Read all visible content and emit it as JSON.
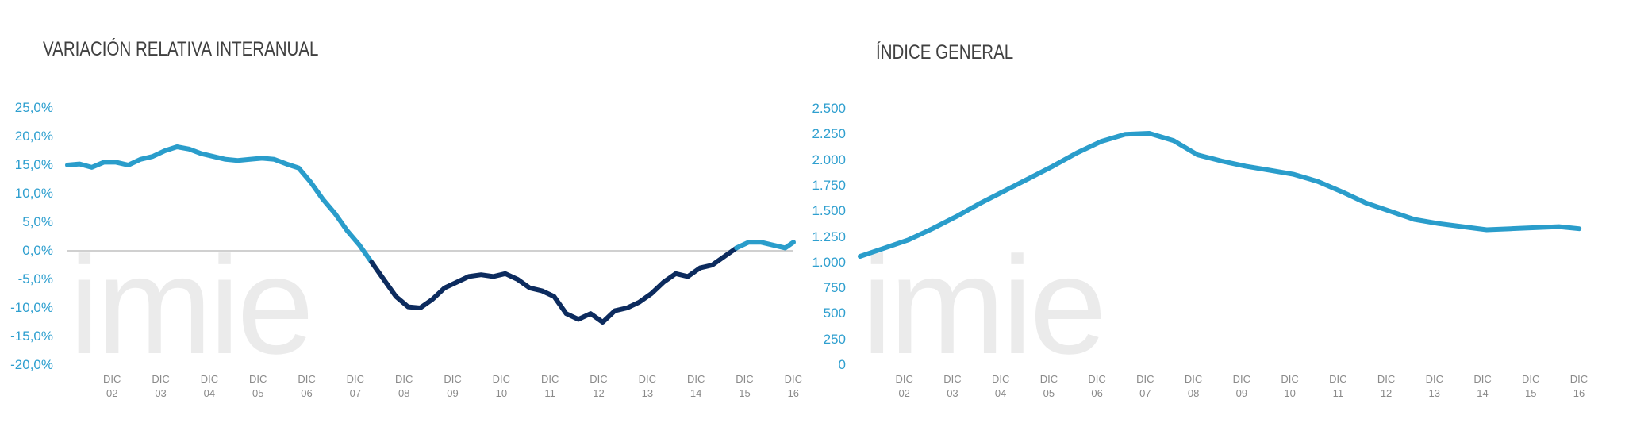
{
  "chart_data": [
    {
      "type": "line",
      "title": "VARIACIÓN RELATIVA INTERANUAL",
      "watermark": "imie",
      "x": [
        2002.0,
        2002.25,
        2002.5,
        2002.75,
        2003.0,
        2003.25,
        2003.5,
        2003.75,
        2004.0,
        2004.25,
        2004.5,
        2004.75,
        2005.0,
        2005.25,
        2005.5,
        2005.75,
        2006.0,
        2006.25,
        2006.5,
        2006.75,
        2007.0,
        2007.25,
        2007.5,
        2007.75,
        2008.0,
        2008.25,
        2008.5,
        2008.75,
        2009.0,
        2009.25,
        2009.5,
        2009.75,
        2010.0,
        2010.25,
        2010.5,
        2010.75,
        2011.0,
        2011.25,
        2011.5,
        2011.75,
        2012.0,
        2012.25,
        2012.5,
        2012.75,
        2013.0,
        2013.25,
        2013.5,
        2013.75,
        2014.0,
        2014.25,
        2014.5,
        2014.75,
        2015.0,
        2015.25,
        2015.5,
        2015.75,
        2016.0,
        2016.25,
        2016.5,
        2016.75,
        2016.92
      ],
      "series": [
        {
          "color": "#2a9dcb",
          "negative_color": "#0c2b5e",
          "values": [
            15.0,
            15.2,
            14.6,
            15.5,
            15.5,
            15.0,
            16.0,
            16.5,
            17.5,
            18.2,
            17.8,
            17.0,
            16.5,
            16.0,
            15.8,
            16.0,
            16.2,
            16.0,
            15.2,
            14.5,
            12.0,
            9.0,
            6.5,
            3.5,
            1.0,
            -2.0,
            -5.0,
            -8.0,
            -9.8,
            -10.0,
            -8.5,
            -6.5,
            -5.5,
            -4.5,
            -4.2,
            -4.5,
            -4.0,
            -5.0,
            -6.5,
            -7.0,
            -8.0,
            -11.0,
            -12.0,
            -11.0,
            -12.5,
            -10.5,
            -10.0,
            -9.0,
            -7.5,
            -5.5,
            -4.0,
            -4.5,
            -3.0,
            -2.5,
            -1.0,
            0.5,
            1.5,
            1.5,
            1.0,
            0.5,
            1.5
          ]
        }
      ],
      "xlim": [
        2002,
        2016.92
      ],
      "xticks": [
        {
          "value": 2002.917,
          "label": "DIC\n02"
        },
        {
          "value": 2003.917,
          "label": "DIC\n03"
        },
        {
          "value": 2004.917,
          "label": "DIC\n04"
        },
        {
          "value": 2005.917,
          "label": "DIC\n05"
        },
        {
          "value": 2006.917,
          "label": "DIC\n06"
        },
        {
          "value": 2007.917,
          "label": "DIC\n07"
        },
        {
          "value": 2008.917,
          "label": "DIC\n08"
        },
        {
          "value": 2009.917,
          "label": "DIC\n09"
        },
        {
          "value": 2010.917,
          "label": "DIC\n10"
        },
        {
          "value": 2011.917,
          "label": "DIC\n11"
        },
        {
          "value": 2012.917,
          "label": "DIC\n12"
        },
        {
          "value": 2013.917,
          "label": "DIC\n13"
        },
        {
          "value": 2014.917,
          "label": "DIC\n14"
        },
        {
          "value": 2015.917,
          "label": "DIC\n15"
        },
        {
          "value": 2016.917,
          "label": "DIC\n16"
        }
      ],
      "ylim": [
        -20,
        25
      ],
      "yticks": [
        {
          "value": -20,
          "label": "-20,0%"
        },
        {
          "value": -15,
          "label": "-15,0%"
        },
        {
          "value": -10,
          "label": "-10,0%"
        },
        {
          "value": -5,
          "label": "-5,0%"
        },
        {
          "value": 0,
          "label": "0,0%"
        },
        {
          "value": 5,
          "label": "5,0%"
        },
        {
          "value": 10,
          "label": "10,0%"
        },
        {
          "value": 15,
          "label": "15,0%"
        },
        {
          "value": 20,
          "label": "20,0%"
        },
        {
          "value": 25,
          "label": "25,0%"
        }
      ],
      "zero_line": true
    },
    {
      "type": "line",
      "title": "ÍNDICE GENERAL",
      "watermark": "imie",
      "x": [
        2002.0,
        2002.5,
        2003.0,
        2003.5,
        2004.0,
        2004.5,
        2005.0,
        2005.5,
        2006.0,
        2006.5,
        2007.0,
        2007.5,
        2008.0,
        2008.5,
        2009.0,
        2009.5,
        2010.0,
        2010.5,
        2011.0,
        2011.5,
        2012.0,
        2012.5,
        2013.0,
        2013.5,
        2014.0,
        2014.5,
        2015.0,
        2015.5,
        2016.0,
        2016.5,
        2016.92
      ],
      "series": [
        {
          "color": "#2a9dcb",
          "values": [
            1060,
            1140,
            1220,
            1330,
            1450,
            1580,
            1700,
            1820,
            1940,
            2070,
            2180,
            2250,
            2260,
            2190,
            2050,
            1990,
            1940,
            1900,
            1860,
            1790,
            1690,
            1580,
            1500,
            1420,
            1380,
            1350,
            1320,
            1330,
            1340,
            1350,
            1330
          ]
        }
      ],
      "xlim": [
        2002,
        2016.95
      ],
      "xticks": [
        {
          "value": 2002.917,
          "label": "DIC\n02"
        },
        {
          "value": 2003.917,
          "label": "DIC\n03"
        },
        {
          "value": 2004.917,
          "label": "DIC\n04"
        },
        {
          "value": 2005.917,
          "label": "DIC\n05"
        },
        {
          "value": 2006.917,
          "label": "DIC\n06"
        },
        {
          "value": 2007.917,
          "label": "DIC\n07"
        },
        {
          "value": 2008.917,
          "label": "DIC\n08"
        },
        {
          "value": 2009.917,
          "label": "DIC\n09"
        },
        {
          "value": 2010.917,
          "label": "DIC\n10"
        },
        {
          "value": 2011.917,
          "label": "DIC\n11"
        },
        {
          "value": 2012.917,
          "label": "DIC\n12"
        },
        {
          "value": 2013.917,
          "label": "DIC\n13"
        },
        {
          "value": 2014.917,
          "label": "DIC\n14"
        },
        {
          "value": 2015.917,
          "label": "DIC\n15"
        },
        {
          "value": 2016.917,
          "label": "DIC\n16"
        }
      ],
      "ylim": [
        0,
        2500
      ],
      "yticks": [
        0,
        250,
        500,
        750,
        {
          "value": 1000,
          "label": "1.000"
        },
        {
          "value": 1250,
          "label": "1.250"
        },
        {
          "value": 1500,
          "label": "1.500"
        },
        {
          "value": 1750,
          "label": "1.750"
        },
        {
          "value": 2000,
          "label": "2.000"
        },
        {
          "value": 2250,
          "label": "2.250"
        },
        {
          "value": 2500,
          "label": "2.500"
        }
      ],
      "zero_line": false
    }
  ]
}
